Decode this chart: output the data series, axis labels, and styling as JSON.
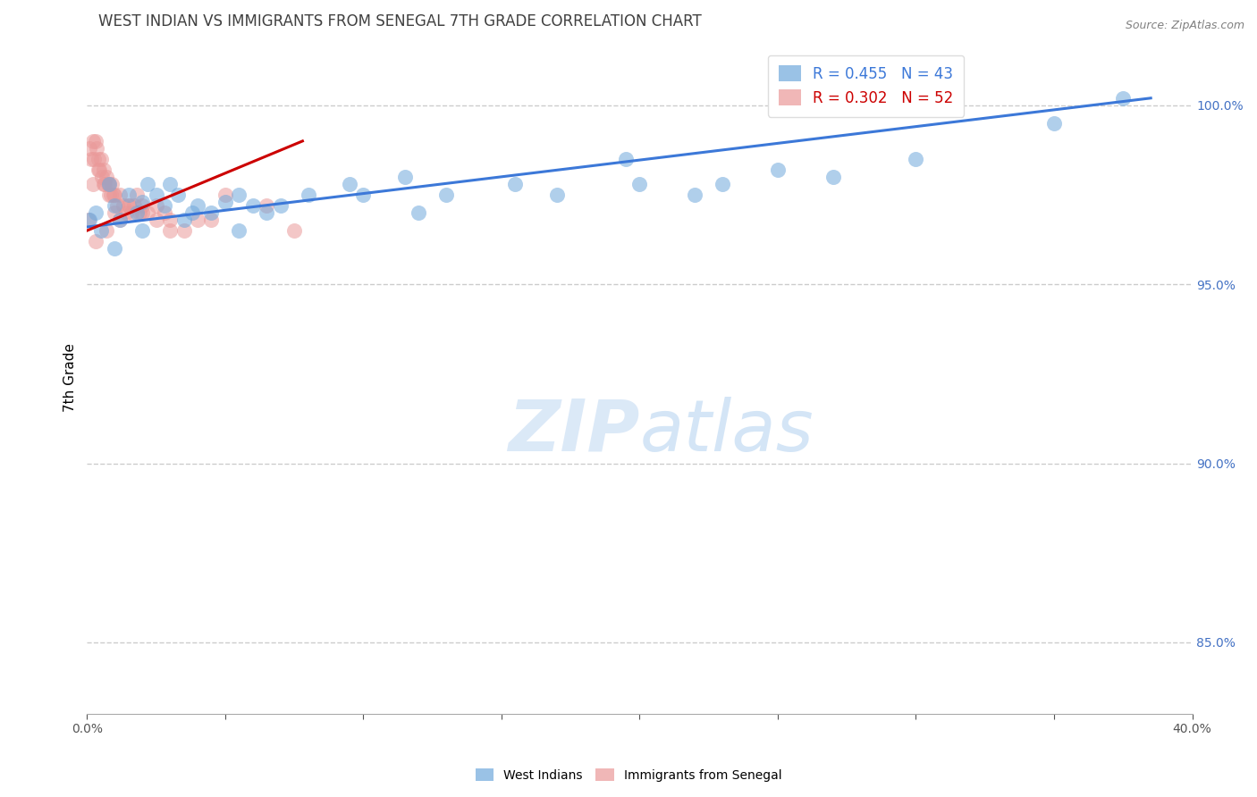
{
  "title": "WEST INDIAN VS IMMIGRANTS FROM SENEGAL 7TH GRADE CORRELATION CHART",
  "source": "Source: ZipAtlas.com",
  "ylabel": "7th Grade",
  "ylabel_right_vals": [
    100.0,
    95.0,
    90.0,
    85.0
  ],
  "watermark_zip": "ZIP",
  "watermark_atlas": "atlas",
  "legend_blue": "R = 0.455   N = 43",
  "legend_pink": "R = 0.302   N = 52",
  "legend_label_blue": "West Indians",
  "legend_label_pink": "Immigrants from Senegal",
  "blue_scatter_x": [
    0.1,
    0.3,
    0.5,
    0.8,
    1.0,
    1.2,
    1.5,
    1.8,
    2.0,
    2.2,
    2.5,
    2.8,
    3.0,
    3.3,
    3.8,
    4.0,
    4.5,
    5.0,
    5.5,
    6.0,
    6.5,
    7.0,
    8.0,
    9.5,
    10.0,
    11.5,
    13.0,
    15.5,
    17.0,
    19.5,
    22.0,
    23.0,
    25.0,
    27.0,
    30.0,
    35.0,
    37.5,
    1.0,
    2.0,
    3.5,
    5.5,
    12.0,
    20.0
  ],
  "blue_scatter_y": [
    96.8,
    97.0,
    96.5,
    97.8,
    97.2,
    96.8,
    97.5,
    97.0,
    97.3,
    97.8,
    97.5,
    97.2,
    97.8,
    97.5,
    97.0,
    97.2,
    97.0,
    97.3,
    97.5,
    97.2,
    97.0,
    97.2,
    97.5,
    97.8,
    97.5,
    98.0,
    97.5,
    97.8,
    97.5,
    98.5,
    97.5,
    97.8,
    98.2,
    98.0,
    98.5,
    99.5,
    100.2,
    96.0,
    96.5,
    96.8,
    96.5,
    97.0,
    97.8
  ],
  "pink_scatter_x": [
    0.05,
    0.1,
    0.15,
    0.2,
    0.25,
    0.3,
    0.35,
    0.4,
    0.45,
    0.5,
    0.55,
    0.6,
    0.65,
    0.7,
    0.75,
    0.8,
    0.85,
    0.9,
    0.95,
    1.0,
    1.1,
    1.2,
    1.3,
    1.4,
    1.5,
    1.6,
    1.7,
    1.8,
    1.9,
    2.0,
    2.2,
    2.5,
    2.8,
    3.0,
    3.5,
    4.0,
    5.0,
    6.5,
    7.5,
    0.2,
    0.4,
    0.6,
    0.8,
    1.0,
    1.5,
    2.0,
    2.5,
    3.0,
    4.5,
    0.3,
    0.7,
    1.2
  ],
  "pink_scatter_y": [
    96.8,
    98.8,
    98.5,
    99.0,
    98.5,
    99.0,
    98.8,
    98.5,
    98.2,
    98.5,
    98.0,
    98.2,
    97.8,
    98.0,
    97.8,
    97.8,
    97.5,
    97.8,
    97.5,
    97.5,
    97.2,
    97.5,
    97.2,
    97.0,
    97.2,
    97.0,
    97.2,
    97.5,
    97.0,
    97.2,
    97.0,
    97.2,
    97.0,
    96.8,
    96.5,
    96.8,
    97.5,
    97.2,
    96.5,
    97.8,
    98.2,
    97.8,
    97.5,
    97.0,
    97.2,
    97.0,
    96.8,
    96.5,
    96.8,
    96.2,
    96.5,
    96.8
  ],
  "blue_line_x": [
    0.0,
    38.5
  ],
  "blue_line_y": [
    96.6,
    100.2
  ],
  "pink_line_x": [
    0.0,
    7.8
  ],
  "pink_line_y": [
    96.5,
    99.0
  ],
  "xlim": [
    0.0,
    40.0
  ],
  "ylim": [
    83.0,
    101.8
  ],
  "blue_color": "#6fa8dc",
  "pink_color": "#ea9999",
  "blue_line_color": "#3c78d8",
  "pink_line_color": "#cc0000",
  "grid_color": "#cccccc",
  "right_axis_color": "#4472c4",
  "title_color": "#404040",
  "source_color": "#808080"
}
